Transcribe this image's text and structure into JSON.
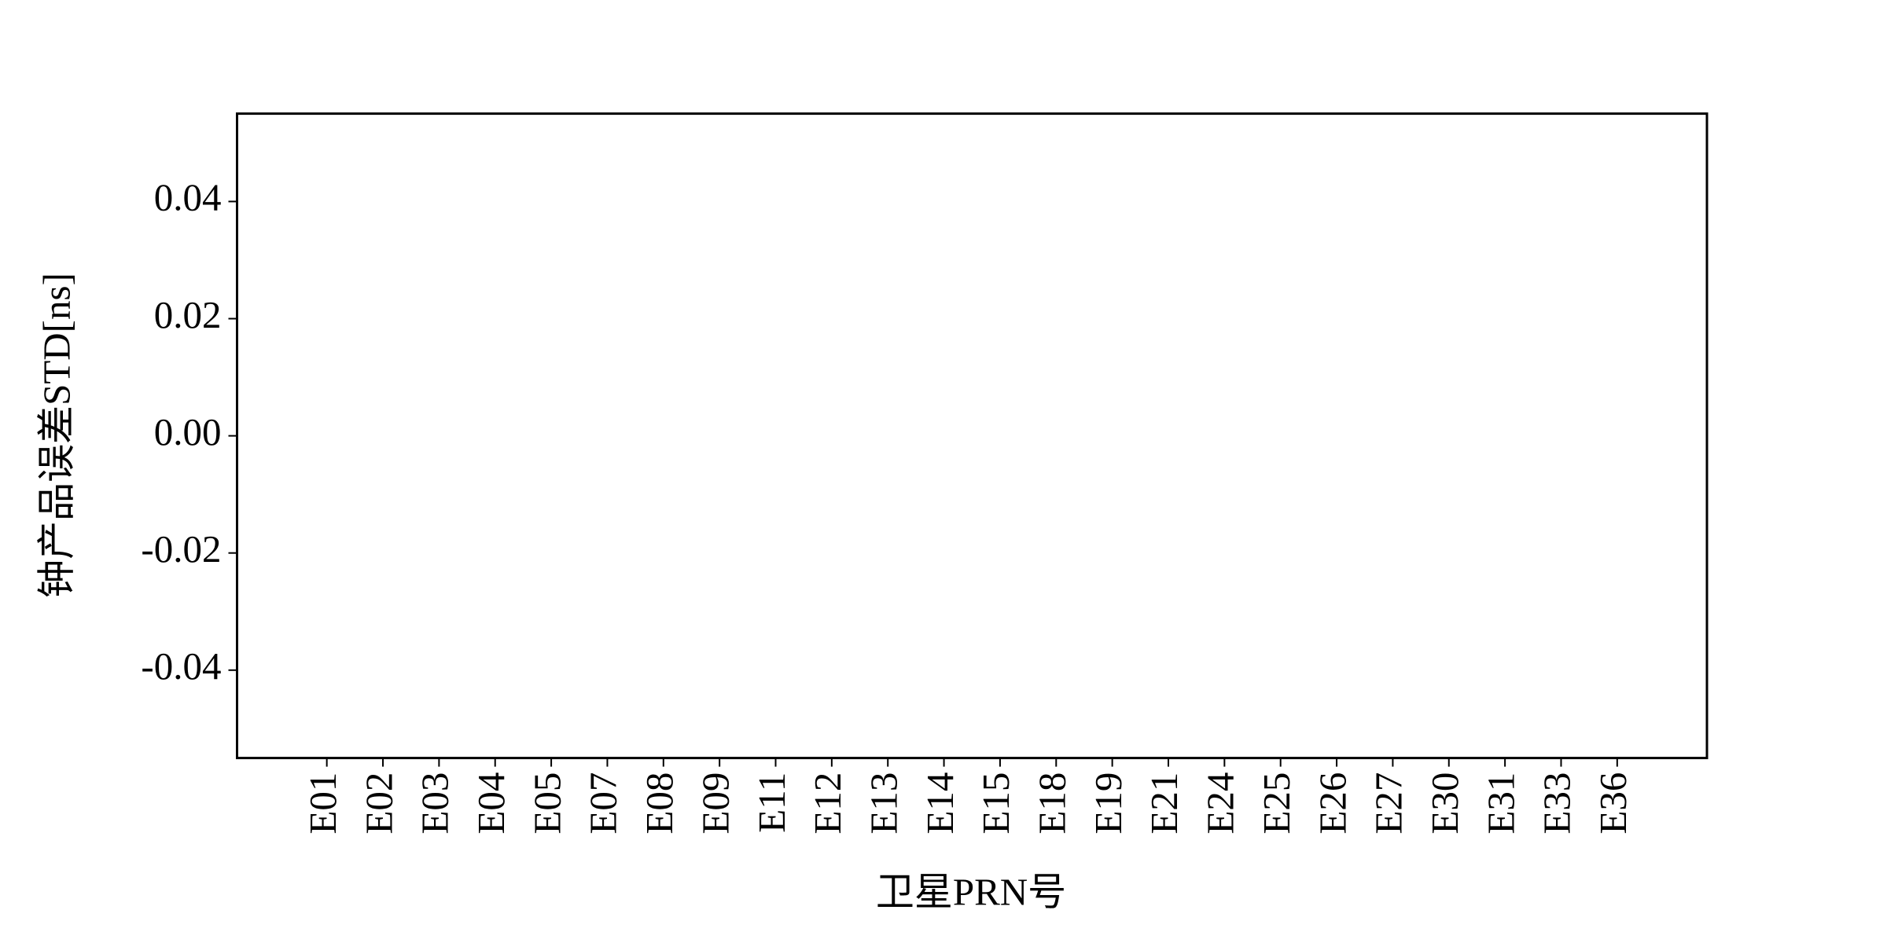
{
  "chart_data": {
    "type": "bar",
    "xlabel": "卫星PRN号",
    "ylabel": "钟产品误差STD[ns]",
    "categories": [
      "E01",
      "E02",
      "E03",
      "E04",
      "E05",
      "E07",
      "E08",
      "E09",
      "E11",
      "E12",
      "E13",
      "E14",
      "E15",
      "E18",
      "E19",
      "E21",
      "E24",
      "E25",
      "E26",
      "E27",
      "E30",
      "E31",
      "E33",
      "E36"
    ],
    "ylim": [
      -0.055,
      0.055
    ],
    "yticks": [
      -0.04,
      -0.02,
      {
        "value": 0,
        "label": "0.00"
      },
      0.02,
      0.04
    ],
    "grid": false
  }
}
